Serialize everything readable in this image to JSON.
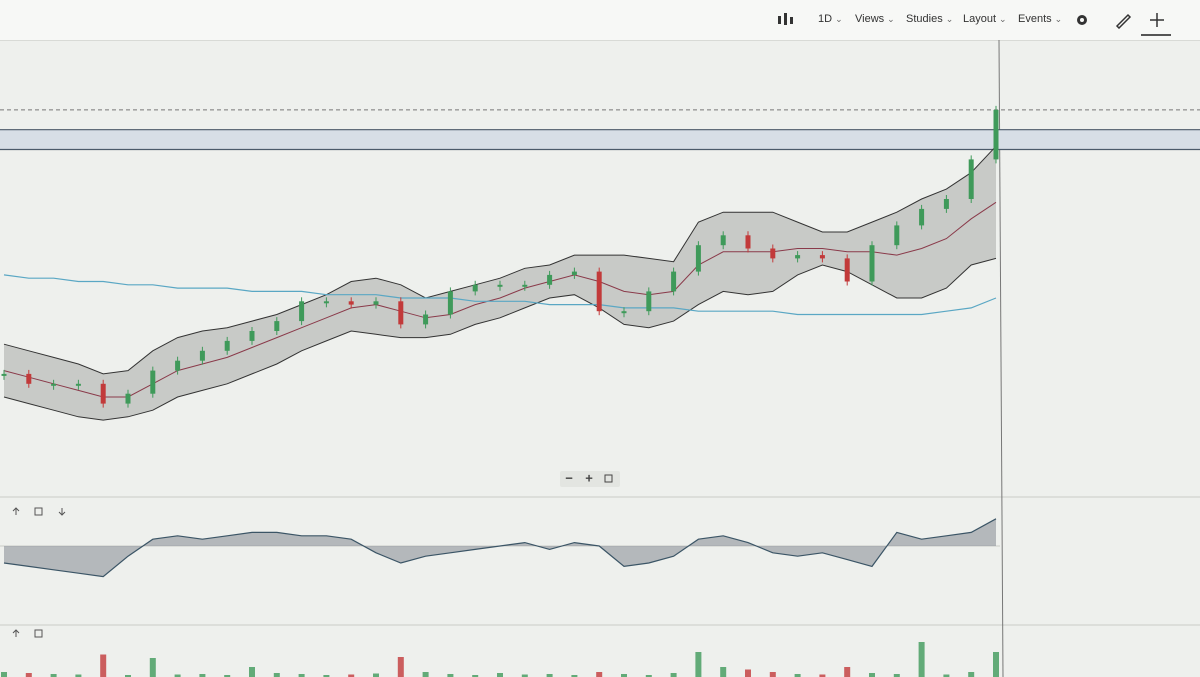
{
  "toolbar": {
    "interval": "1D",
    "menus": [
      "Views",
      "Studies",
      "Layout",
      "Events"
    ]
  },
  "zoom_controls": [
    "−",
    "+"
  ],
  "chart_data": {
    "type": "candlestick",
    "closes": [
      17,
      14,
      14,
      14,
      8,
      11,
      18,
      21,
      24,
      27,
      30,
      33,
      39,
      39,
      38,
      39,
      32,
      35,
      42,
      44,
      44,
      44,
      47,
      48,
      36,
      36,
      42,
      48,
      56,
      59,
      55,
      52,
      53,
      52,
      45,
      56,
      62,
      67,
      70,
      82,
      97
    ],
    "band_upper": [
      26,
      24,
      22,
      20,
      17,
      18,
      24,
      28,
      30,
      31,
      33,
      35,
      38,
      41,
      45,
      46,
      44,
      40,
      42,
      44,
      46,
      49,
      50,
      53,
      53,
      53,
      52,
      51,
      63,
      66,
      66,
      66,
      63,
      60,
      60,
      63,
      66,
      70,
      73,
      78,
      86
    ],
    "band_lower": [
      10,
      8,
      6,
      4,
      3,
      4,
      6,
      10,
      12,
      14,
      17,
      20,
      24,
      27,
      30,
      29,
      28,
      28,
      29,
      32,
      34,
      37,
      40,
      41,
      37,
      32,
      31,
      33,
      38,
      42,
      41,
      42,
      47,
      50,
      48,
      44,
      40,
      40,
      43,
      50,
      52
    ],
    "band_mid": [
      18,
      16,
      14,
      12,
      10,
      10,
      14,
      18,
      20,
      22,
      25,
      28,
      31,
      34,
      37,
      38,
      36,
      34,
      35,
      38,
      40,
      43,
      45,
      47,
      45,
      42,
      41,
      42,
      50,
      54,
      54,
      54,
      55,
      55,
      54,
      54,
      53,
      55,
      58,
      64,
      69
    ],
    "long_ma": [
      47,
      46,
      46,
      45,
      45,
      44,
      44,
      43,
      43,
      43,
      42,
      42,
      42,
      41,
      41,
      41,
      40,
      40,
      40,
      39,
      39,
      39,
      38,
      38,
      38,
      37,
      37,
      37,
      36,
      36,
      36,
      36,
      35,
      35,
      35,
      35,
      35,
      35,
      36,
      37,
      40
    ],
    "levels": [
      85,
      91
    ],
    "dashed_level": 97,
    "ylim": [
      0,
      100
    ],
    "oscillator": [
      -5,
      -6,
      -7,
      -8,
      -9,
      -3,
      2,
      3,
      2,
      3,
      4,
      4,
      3,
      3,
      2,
      -2,
      -5,
      -3,
      -2,
      -1,
      0,
      1,
      -1,
      1,
      0,
      -6,
      -5,
      -3,
      2,
      3,
      1,
      -2,
      -3,
      -2,
      -4,
      -6,
      4,
      2,
      3,
      4,
      8
    ],
    "oscillator_ylim": [
      -10,
      10
    ],
    "volume": [
      10,
      8,
      6,
      5,
      45,
      4,
      38,
      5,
      6,
      4,
      20,
      8,
      6,
      4,
      5,
      7,
      40,
      10,
      6,
      4,
      8,
      5,
      6,
      4,
      10,
      6,
      4,
      8,
      50,
      20,
      15,
      10,
      6,
      5,
      20,
      8,
      6,
      70,
      5,
      10,
      50
    ],
    "volume_ylim": [
      0,
      100
    ],
    "up_color": "#3f9a5a",
    "down_color": "#c23a3a"
  }
}
